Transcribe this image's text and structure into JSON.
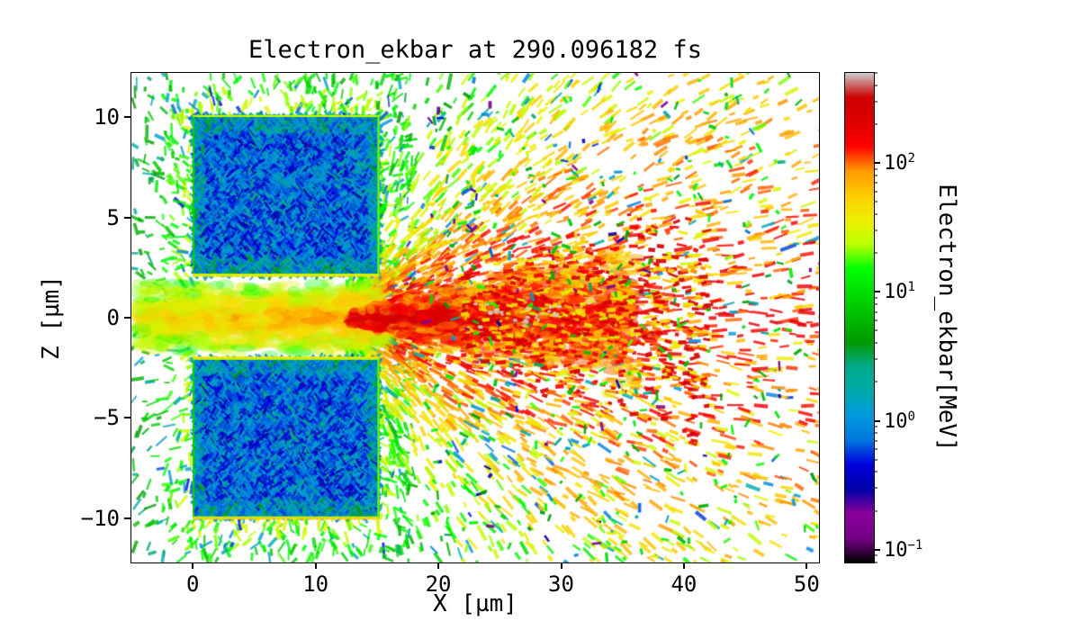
{
  "chart_data": {
    "type": "scatter",
    "title": "Electron_ekbar at 290.096182 fs",
    "xlabel": "X [µm]",
    "ylabel": "Z [µm]",
    "xlim": [
      -5,
      51
    ],
    "ylim": [
      -12.2,
      12.2
    ],
    "grid": false,
    "x_ticks": [
      {
        "label": "0",
        "value": 0
      },
      {
        "label": "10",
        "value": 10
      },
      {
        "label": "20",
        "value": 20
      },
      {
        "label": "30",
        "value": 30
      },
      {
        "label": "40",
        "value": 40
      },
      {
        "label": "50",
        "value": 50
      }
    ],
    "y_ticks": [
      {
        "label": "10",
        "value": 10
      },
      {
        "label": "5",
        "value": 5
      },
      {
        "label": "0",
        "value": 0
      },
      {
        "label": "−5",
        "value": -5
      },
      {
        "label": "−10",
        "value": -10
      }
    ],
    "colorbar": {
      "label": "Electron_ekbar[MeV]",
      "scale": "log",
      "colormap": "nipy_spectral",
      "range_log10": [
        -1.1,
        2.7
      ],
      "ticks": [
        {
          "base": "10",
          "exp": "2",
          "value": 100
        },
        {
          "base": "10",
          "exp": "1",
          "value": 10
        },
        {
          "base": "10",
          "exp": "0",
          "value": 1
        },
        {
          "base": "10",
          "exp": "−1",
          "value": 0.1
        }
      ]
    },
    "features": {
      "target_blocks": [
        {
          "x": [
            0,
            15.2
          ],
          "z": [
            2.1,
            10.1
          ],
          "energy_MeV": [
            0.3,
            2
          ]
        },
        {
          "x": [
            0,
            15.2
          ],
          "z": [
            -10,
            -2
          ],
          "energy_MeV": [
            0.3,
            2
          ]
        }
      ],
      "channel": {
        "x": [
          -4.5,
          15.5
        ],
        "z": [
          -2,
          2
        ],
        "energy_MeV": [
          16,
          100
        ]
      },
      "hot_jet": {
        "origin_x": 12,
        "extent_x": 42,
        "half_angle_rad": 1.35,
        "peak_energy_MeV": 300
      },
      "halo": {
        "x": [
          -5,
          18
        ],
        "energy_MeV": [
          2,
          35
        ]
      },
      "sparse_tail": {
        "x": [
          19,
          51
        ],
        "energy_MeV": [
          0.15,
          50
        ]
      }
    },
    "colors": {
      "background": "#ffffff",
      "axes": "#000000"
    }
  }
}
